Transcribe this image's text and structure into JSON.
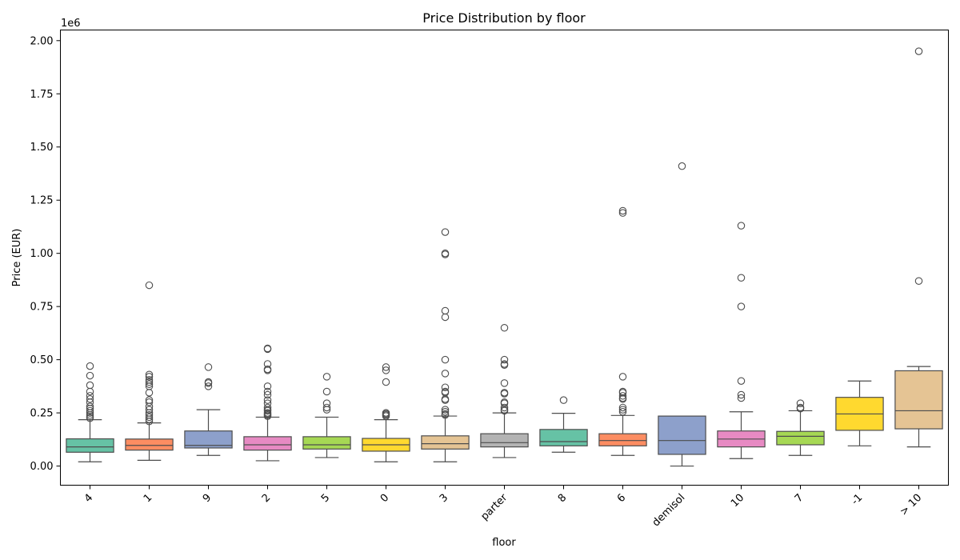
{
  "chart_data": {
    "type": "box",
    "title": "Price Distribution by floor",
    "xlabel": "floor",
    "ylabel": "Price (EUR)",
    "y_offset_label": "1e6",
    "y_scale_factor": 1000000,
    "ylim": [
      -0.09,
      2.05
    ],
    "yticks": [
      0.0,
      0.25,
      0.5,
      0.75,
      1.0,
      1.25,
      1.5,
      1.75,
      2.0
    ],
    "ytick_labels": [
      "0.00",
      "0.25",
      "0.50",
      "0.75",
      "1.00",
      "1.25",
      "1.50",
      "1.75",
      "2.00"
    ],
    "grid": false,
    "legend": "none",
    "categories": [
      "4",
      "1",
      "9",
      "2",
      "5",
      "0",
      "3",
      "parter",
      "8",
      "6",
      "demisol",
      "10",
      "7",
      "-1",
      "> 10"
    ],
    "colors": [
      "#66c2a5",
      "#fc8d62",
      "#8da0cb",
      "#e78ac3",
      "#a6d854",
      "#ffd92f",
      "#e5c494",
      "#b3b3b3",
      "#66c2a5",
      "#fc8d62",
      "#8da0cb",
      "#e78ac3",
      "#a6d854",
      "#ffd92f",
      "#e5c494"
    ],
    "boxes": [
      {
        "category": "4",
        "whisker_low": 0.02,
        "q1": 0.065,
        "median": 0.09,
        "q3": 0.128,
        "whisker_high": 0.218,
        "outliers": [
          0.225,
          0.232,
          0.24,
          0.25,
          0.26,
          0.27,
          0.28,
          0.3,
          0.315,
          0.33,
          0.35,
          0.38,
          0.425,
          0.47
        ]
      },
      {
        "category": "1",
        "whisker_low": 0.027,
        "q1": 0.075,
        "median": 0.097,
        "q3": 0.127,
        "whisker_high": 0.203,
        "outliers": [
          0.21,
          0.22,
          0.23,
          0.24,
          0.25,
          0.265,
          0.28,
          0.3,
          0.31,
          0.345,
          0.375,
          0.385,
          0.395,
          0.405,
          0.42,
          0.43,
          0.85
        ]
      },
      {
        "category": "9",
        "whisker_low": 0.05,
        "q1": 0.085,
        "median": 0.097,
        "q3": 0.165,
        "whisker_high": 0.265,
        "outliers": [
          0.375,
          0.39,
          0.395,
          0.465
        ]
      },
      {
        "category": "2",
        "whisker_low": 0.025,
        "q1": 0.075,
        "median": 0.1,
        "q3": 0.138,
        "whisker_high": 0.23,
        "outliers": [
          0.235,
          0.24,
          0.245,
          0.25,
          0.26,
          0.265,
          0.275,
          0.295,
          0.31,
          0.335,
          0.35,
          0.375,
          0.45,
          0.455,
          0.48,
          0.55,
          0.553
        ]
      },
      {
        "category": "5",
        "whisker_low": 0.04,
        "q1": 0.08,
        "median": 0.1,
        "q3": 0.138,
        "whisker_high": 0.23,
        "outliers": [
          0.265,
          0.275,
          0.295,
          0.35,
          0.42
        ]
      },
      {
        "category": "0",
        "whisker_low": 0.02,
        "q1": 0.07,
        "median": 0.1,
        "q3": 0.13,
        "whisker_high": 0.218,
        "outliers": [
          0.235,
          0.24,
          0.245,
          0.25,
          0.395,
          0.45,
          0.465
        ]
      },
      {
        "category": "3",
        "whisker_low": 0.02,
        "q1": 0.08,
        "median": 0.105,
        "q3": 0.142,
        "whisker_high": 0.235,
        "outliers": [
          0.24,
          0.245,
          0.255,
          0.265,
          0.31,
          0.315,
          0.345,
          0.35,
          0.37,
          0.435,
          0.5,
          0.7,
          0.73,
          0.995,
          1.0,
          1.1
        ]
      },
      {
        "category": "parter",
        "whisker_low": 0.04,
        "q1": 0.09,
        "median": 0.11,
        "q3": 0.152,
        "whisker_high": 0.25,
        "outliers": [
          0.26,
          0.265,
          0.275,
          0.295,
          0.3,
          0.34,
          0.345,
          0.39,
          0.475,
          0.48,
          0.5,
          0.65
        ]
      },
      {
        "category": "8",
        "whisker_low": 0.065,
        "q1": 0.095,
        "median": 0.115,
        "q3": 0.172,
        "whisker_high": 0.248,
        "outliers": [
          0.31
        ]
      },
      {
        "category": "6",
        "whisker_low": 0.05,
        "q1": 0.095,
        "median": 0.12,
        "q3": 0.152,
        "whisker_high": 0.238,
        "outliers": [
          0.255,
          0.265,
          0.275,
          0.315,
          0.32,
          0.33,
          0.345,
          0.35,
          0.42,
          1.19,
          1.2
        ]
      },
      {
        "category": "demisol",
        "whisker_low": 0.0,
        "q1": 0.055,
        "median": 0.12,
        "q3": 0.235,
        "whisker_high": 0.235,
        "outliers": [
          1.41
        ]
      },
      {
        "category": "10",
        "whisker_low": 0.035,
        "q1": 0.09,
        "median": 0.127,
        "q3": 0.165,
        "whisker_high": 0.255,
        "outliers": [
          0.32,
          0.335,
          0.4,
          0.75,
          0.885,
          1.13
        ]
      },
      {
        "category": "7",
        "whisker_low": 0.05,
        "q1": 0.1,
        "median": 0.14,
        "q3": 0.163,
        "whisker_high": 0.26,
        "outliers": [
          0.27,
          0.275,
          0.295
        ]
      },
      {
        "category": "-1",
        "whisker_low": 0.095,
        "q1": 0.168,
        "median": 0.245,
        "q3": 0.323,
        "whisker_high": 0.4,
        "outliers": []
      },
      {
        "category": "> 10",
        "whisker_low": 0.09,
        "q1": 0.175,
        "median": 0.26,
        "q3": 0.448,
        "whisker_high": 0.468,
        "outliers": [
          0.87,
          1.95
        ]
      }
    ]
  }
}
